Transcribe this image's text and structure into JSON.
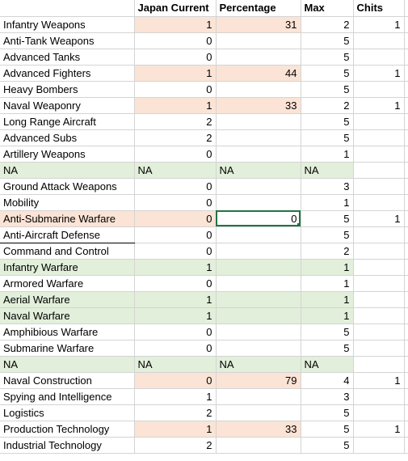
{
  "headers": {
    "name": "",
    "japan": "Japan Current",
    "percentage": "Percentage",
    "max": "Max",
    "chits": "Chits"
  },
  "rows": [
    {
      "name": "Infantry Weapons",
      "japan": "1",
      "pct": "31",
      "max": "2",
      "chits": "1",
      "style": "peach"
    },
    {
      "name": "Anti-Tank Weapons",
      "japan": "0",
      "pct": "",
      "max": "5",
      "chits": "",
      "style": ""
    },
    {
      "name": "Advanced Tanks",
      "japan": "0",
      "pct": "",
      "max": "5",
      "chits": "",
      "style": ""
    },
    {
      "name": "Advanced Fighters",
      "japan": "1",
      "pct": "44",
      "max": "5",
      "chits": "1",
      "style": "peach"
    },
    {
      "name": "Heavy Bombers",
      "japan": "0",
      "pct": "",
      "max": "5",
      "chits": "",
      "style": ""
    },
    {
      "name": "Naval Weaponry",
      "japan": "1",
      "pct": "33",
      "max": "2",
      "chits": "1",
      "style": "peach"
    },
    {
      "name": "Long Range Aircraft",
      "japan": "2",
      "pct": "",
      "max": "5",
      "chits": "",
      "style": ""
    },
    {
      "name": "Advanced Subs",
      "japan": "2",
      "pct": "",
      "max": "5",
      "chits": "",
      "style": ""
    },
    {
      "name": "Artillery Weapons",
      "japan": "0",
      "pct": "",
      "max": "1",
      "chits": "",
      "style": ""
    },
    {
      "name": "NA",
      "japan": "NA",
      "pct": "NA",
      "max": "NA",
      "chits": "",
      "style": "na"
    },
    {
      "name": "Ground Attack Weapons",
      "japan": "0",
      "pct": "",
      "max": "3",
      "chits": "",
      "style": ""
    },
    {
      "name": "Mobility",
      "japan": "0",
      "pct": "",
      "max": "1",
      "chits": "",
      "style": ""
    },
    {
      "name": "Anti-Submarine Warfare",
      "japan": "0",
      "pct": "0",
      "max": "5",
      "chits": "1",
      "style": "peach-selected"
    },
    {
      "name": "Anti-Aircraft Defense",
      "japan": "0",
      "pct": "",
      "max": "5",
      "chits": "",
      "style": "underline"
    },
    {
      "name": "Command and Control",
      "japan": "0",
      "pct": "",
      "max": "2",
      "chits": "",
      "style": ""
    },
    {
      "name": "Infantry Warfare",
      "japan": "1",
      "pct": "",
      "max": "1",
      "chits": "",
      "style": "green"
    },
    {
      "name": "Armored Warfare",
      "japan": "0",
      "pct": "",
      "max": "1",
      "chits": "",
      "style": ""
    },
    {
      "name": "Aerial Warfare",
      "japan": "1",
      "pct": "",
      "max": "1",
      "chits": "",
      "style": "green"
    },
    {
      "name": "Naval Warfare",
      "japan": "1",
      "pct": "",
      "max": "1",
      "chits": "",
      "style": "green"
    },
    {
      "name": "Amphibious Warfare",
      "japan": "0",
      "pct": "",
      "max": "5",
      "chits": "",
      "style": ""
    },
    {
      "name": "Submarine Warfare",
      "japan": "0",
      "pct": "",
      "max": "5",
      "chits": "",
      "style": ""
    },
    {
      "name": "NA",
      "japan": "NA",
      "pct": "NA",
      "max": "NA",
      "chits": "",
      "style": "na"
    },
    {
      "name": "Naval Construction",
      "japan": "0",
      "pct": "79",
      "max": "4",
      "chits": "1",
      "style": "peach"
    },
    {
      "name": "Spying and Intelligence",
      "japan": "1",
      "pct": "",
      "max": "3",
      "chits": "",
      "style": ""
    },
    {
      "name": "Logistics",
      "japan": "2",
      "pct": "",
      "max": "5",
      "chits": "",
      "style": ""
    },
    {
      "name": "Production Technology",
      "japan": "1",
      "pct": "33",
      "max": "5",
      "chits": "1",
      "style": "peach"
    },
    {
      "name": "Industrial Technology",
      "japan": "2",
      "pct": "",
      "max": "5",
      "chits": "",
      "style": ""
    }
  ],
  "colors": {
    "peach": "#fbe4d5",
    "green": "#e2efda",
    "selection": "#217346",
    "gridline": "#d4d4d4"
  }
}
